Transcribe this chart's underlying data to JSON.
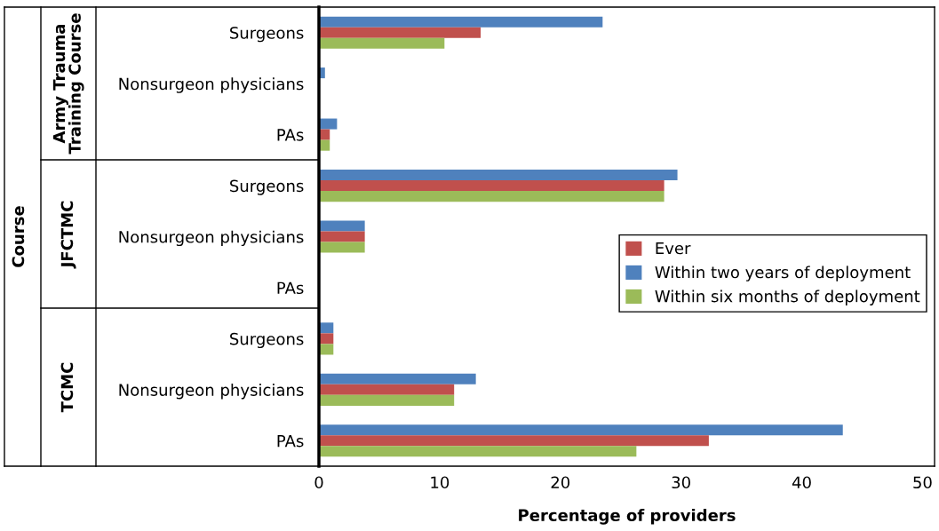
{
  "chart_data": {
    "type": "bar",
    "orientation": "horizontal",
    "xlabel": "Percentage of providers",
    "categories": [
      "Surgeons",
      "Nonsurgeon physicians",
      "PAs",
      "Surgeons",
      "Nonsurgeon physicians",
      "PAs",
      "Surgeons",
      "Nonsurgeon physicians",
      "PAs"
    ],
    "annotations": [
      "Course",
      "Army Trauma\nTraining Course",
      "JFCTMC",
      "TCMC"
    ],
    "series": [
      {
        "name": "Ever",
        "color": "#c0504d",
        "values": [
          13.4,
          0,
          0.9,
          28.6,
          3.8,
          0,
          1.2,
          11.2,
          32.3
        ]
      },
      {
        "name": "Within two years of deployment",
        "color": "#4f81bd",
        "values": [
          23.5,
          0.5,
          1.5,
          29.7,
          3.8,
          0,
          1.2,
          13.0,
          43.4
        ]
      },
      {
        "name": "Within six months of deployment",
        "color": "#9bbb59",
        "values": [
          10.4,
          0,
          0.9,
          28.6,
          3.8,
          0,
          1.2,
          11.2,
          26.3
        ]
      }
    ],
    "xlim": [
      0,
      51
    ],
    "xticks": [
      0,
      10,
      20,
      30,
      40,
      50
    ],
    "legend": "center right",
    "grid": false
  }
}
